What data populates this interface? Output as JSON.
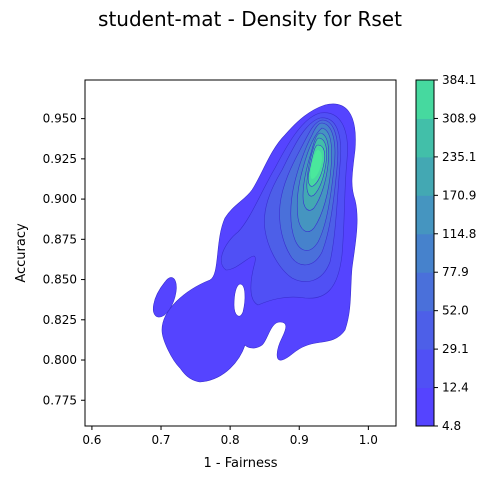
{
  "chart_data": {
    "type": "heatmap",
    "subtype": "filled-contour density",
    "title": "student-mat - Density for Rset",
    "xlabel": "1 - Fairness",
    "ylabel": "Accuracy",
    "xlim": [
      0.59,
      1.04
    ],
    "ylim": [
      0.759,
      0.974
    ],
    "x_ticks": [
      0.6,
      0.7,
      0.8,
      0.9,
      1.0
    ],
    "x_tick_labels": [
      "0.6",
      "0.7",
      "0.8",
      "0.9",
      "1.0"
    ],
    "y_ticks": [
      0.775,
      0.8,
      0.825,
      0.85,
      0.875,
      0.9,
      0.925,
      0.95
    ],
    "y_tick_labels": [
      "0.775",
      "0.800",
      "0.825",
      "0.850",
      "0.875",
      "0.900",
      "0.925",
      "0.950"
    ],
    "colorbar": {
      "levels": [
        4.8,
        12.4,
        29.1,
        52.0,
        77.9,
        114.8,
        170.9,
        235.1,
        308.9,
        384.1
      ],
      "level_labels": [
        "4.8",
        "12.4",
        "29.1",
        "52.0",
        "77.9",
        "114.8",
        "170.9",
        "235.1",
        "308.9",
        "384.1"
      ],
      "colors": [
        "#5544ff",
        "#5050f5",
        "#4d5fe8",
        "#4a70da",
        "#4682cc",
        "#4595c0",
        "#43a8b3",
        "#42bfa9",
        "#46d99f",
        "#4ae89c"
      ]
    },
    "density_peak": {
      "x": 0.925,
      "y": 0.92
    },
    "grid": false,
    "legend": "colorbar-right"
  }
}
